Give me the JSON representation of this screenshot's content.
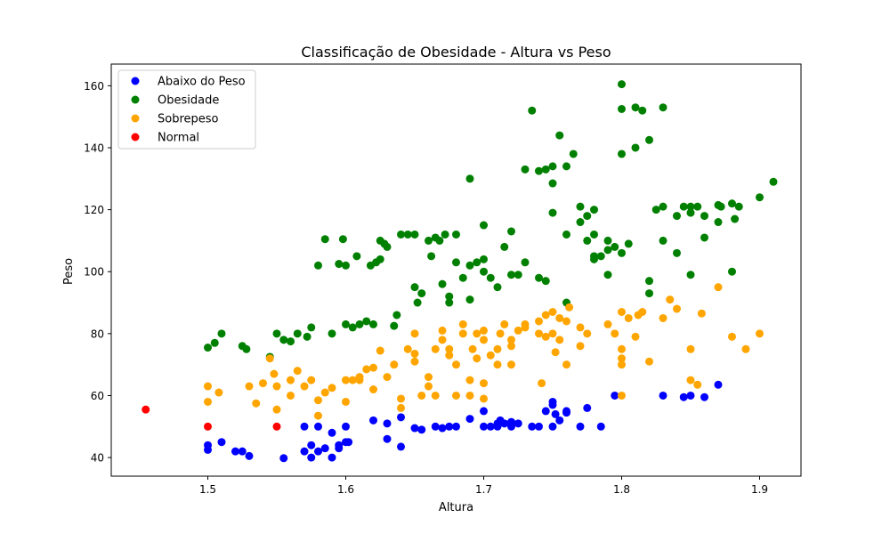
{
  "chart_data": {
    "type": "scatter",
    "title": "Classificação de Obesidade - Altura vs Peso",
    "xlabel": "Altura",
    "ylabel": "Peso",
    "xlim": [
      1.43,
      1.93
    ],
    "ylim": [
      34,
      167
    ],
    "x_ticks": [
      1.5,
      1.6,
      1.7,
      1.8,
      1.9
    ],
    "x_tick_labels": [
      "1.5",
      "1.6",
      "1.7",
      "1.8",
      "1.9"
    ],
    "y_ticks": [
      40,
      60,
      80,
      100,
      120,
      140,
      160
    ],
    "y_tick_labels": [
      "40",
      "60",
      "80",
      "100",
      "120",
      "140",
      "160"
    ],
    "grid": false,
    "legend_position": "top-left",
    "series": [
      {
        "name": "Abaixo do Peso",
        "color": "#0000ff",
        "points": [
          [
            1.5,
            44
          ],
          [
            1.5,
            42.5
          ],
          [
            1.51,
            45
          ],
          [
            1.52,
            42
          ],
          [
            1.525,
            42
          ],
          [
            1.53,
            40.5
          ],
          [
            1.555,
            39.8
          ],
          [
            1.57,
            42
          ],
          [
            1.57,
            50
          ],
          [
            1.575,
            44
          ],
          [
            1.575,
            40
          ],
          [
            1.58,
            42
          ],
          [
            1.58,
            50
          ],
          [
            1.585,
            43
          ],
          [
            1.59,
            48
          ],
          [
            1.59,
            40
          ],
          [
            1.595,
            44
          ],
          [
            1.595,
            43
          ],
          [
            1.6,
            45
          ],
          [
            1.6,
            50
          ],
          [
            1.602,
            45
          ],
          [
            1.62,
            52
          ],
          [
            1.63,
            51
          ],
          [
            1.63,
            46
          ],
          [
            1.64,
            53
          ],
          [
            1.64,
            43.5
          ],
          [
            1.65,
            49.5
          ],
          [
            1.655,
            49
          ],
          [
            1.665,
            50
          ],
          [
            1.67,
            49.5
          ],
          [
            1.675,
            50
          ],
          [
            1.68,
            50
          ],
          [
            1.69,
            52.5
          ],
          [
            1.7,
            55
          ],
          [
            1.7,
            50
          ],
          [
            1.705,
            50
          ],
          [
            1.71,
            51
          ],
          [
            1.71,
            50
          ],
          [
            1.712,
            52
          ],
          [
            1.715,
            51
          ],
          [
            1.72,
            50
          ],
          [
            1.72,
            51.5
          ],
          [
            1.725,
            51
          ],
          [
            1.735,
            50
          ],
          [
            1.74,
            50
          ],
          [
            1.745,
            55
          ],
          [
            1.75,
            50
          ],
          [
            1.75,
            57
          ],
          [
            1.75,
            58
          ],
          [
            1.752,
            54
          ],
          [
            1.755,
            52
          ],
          [
            1.76,
            54.5
          ],
          [
            1.76,
            55
          ],
          [
            1.77,
            50
          ],
          [
            1.775,
            56
          ],
          [
            1.785,
            50
          ],
          [
            1.795,
            60
          ],
          [
            1.83,
            60
          ],
          [
            1.845,
            59.5
          ],
          [
            1.85,
            60
          ],
          [
            1.86,
            59.5
          ],
          [
            1.87,
            63.5
          ]
        ]
      },
      {
        "name": "Obesidade",
        "color": "#008000",
        "points": [
          [
            1.5,
            75.5
          ],
          [
            1.505,
            77
          ],
          [
            1.51,
            80
          ],
          [
            1.525,
            76
          ],
          [
            1.528,
            75
          ],
          [
            1.545,
            72.5
          ],
          [
            1.55,
            80
          ],
          [
            1.555,
            78
          ],
          [
            1.56,
            77.5
          ],
          [
            1.565,
            80
          ],
          [
            1.572,
            79
          ],
          [
            1.575,
            82
          ],
          [
            1.58,
            102
          ],
          [
            1.585,
            110.5
          ],
          [
            1.59,
            80
          ],
          [
            1.595,
            102.5
          ],
          [
            1.598,
            110.5
          ],
          [
            1.6,
            102
          ],
          [
            1.6,
            83
          ],
          [
            1.605,
            82
          ],
          [
            1.608,
            105
          ],
          [
            1.61,
            83
          ],
          [
            1.615,
            84
          ],
          [
            1.618,
            102
          ],
          [
            1.62,
            83
          ],
          [
            1.622,
            103
          ],
          [
            1.625,
            104
          ],
          [
            1.625,
            110
          ],
          [
            1.628,
            109
          ],
          [
            1.63,
            108
          ],
          [
            1.635,
            82.5
          ],
          [
            1.637,
            86
          ],
          [
            1.64,
            112
          ],
          [
            1.645,
            112
          ],
          [
            1.65,
            112
          ],
          [
            1.65,
            95
          ],
          [
            1.652,
            90
          ],
          [
            1.655,
            93
          ],
          [
            1.66,
            110
          ],
          [
            1.662,
            105
          ],
          [
            1.665,
            111
          ],
          [
            1.668,
            110
          ],
          [
            1.67,
            96
          ],
          [
            1.672,
            112
          ],
          [
            1.675,
            92
          ],
          [
            1.675,
            90
          ],
          [
            1.68,
            112
          ],
          [
            1.685,
            98
          ],
          [
            1.69,
            91
          ],
          [
            1.69,
            102
          ],
          [
            1.695,
            103
          ],
          [
            1.7,
            104
          ],
          [
            1.7,
            100
          ],
          [
            1.705,
            98
          ],
          [
            1.71,
            95
          ],
          [
            1.715,
            108
          ],
          [
            1.72,
            113
          ],
          [
            1.725,
            99
          ],
          [
            1.73,
            133
          ],
          [
            1.735,
            152
          ],
          [
            1.74,
            132.5
          ],
          [
            1.745,
            133
          ],
          [
            1.75,
            134
          ],
          [
            1.75,
            128.5
          ],
          [
            1.755,
            144
          ],
          [
            1.76,
            134
          ],
          [
            1.765,
            138
          ],
          [
            1.77,
            121
          ],
          [
            1.775,
            118
          ],
          [
            1.78,
            120
          ],
          [
            1.78,
            112
          ],
          [
            1.785,
            105
          ],
          [
            1.79,
            110
          ],
          [
            1.795,
            108
          ],
          [
            1.8,
            138
          ],
          [
            1.8,
            152.5
          ],
          [
            1.805,
            109
          ],
          [
            1.81,
            153
          ],
          [
            1.815,
            152
          ],
          [
            1.82,
            142.5
          ],
          [
            1.825,
            120
          ],
          [
            1.83,
            121
          ],
          [
            1.83,
            153
          ],
          [
            1.84,
            106
          ],
          [
            1.845,
            121
          ],
          [
            1.85,
            119
          ],
          [
            1.85,
            99
          ],
          [
            1.855,
            121
          ],
          [
            1.86,
            111
          ],
          [
            1.87,
            116
          ],
          [
            1.872,
            121
          ],
          [
            1.88,
            100
          ],
          [
            1.882,
            117
          ],
          [
            1.885,
            121
          ],
          [
            1.9,
            124
          ],
          [
            1.91,
            129
          ],
          [
            1.76,
            112
          ],
          [
            1.77,
            116
          ],
          [
            1.775,
            110
          ],
          [
            1.78,
            104
          ],
          [
            1.79,
            99
          ],
          [
            1.8,
            160.5
          ],
          [
            1.81,
            140
          ],
          [
            1.74,
            98
          ],
          [
            1.745,
            97
          ],
          [
            1.76,
            90
          ],
          [
            1.68,
            103
          ],
          [
            1.69,
            130
          ],
          [
            1.7,
            115
          ],
          [
            1.72,
            99
          ],
          [
            1.73,
            103
          ],
          [
            1.75,
            119
          ],
          [
            1.78,
            105
          ],
          [
            1.79,
            107
          ],
          [
            1.8,
            106
          ],
          [
            1.82,
            97
          ],
          [
            1.82,
            93
          ],
          [
            1.83,
            110
          ],
          [
            1.84,
            118
          ],
          [
            1.85,
            121
          ],
          [
            1.86,
            118
          ],
          [
            1.88,
            122
          ],
          [
            1.87,
            121.5
          ]
        ]
      },
      {
        "name": "Sobrepeso",
        "color": "#ffa500",
        "points": [
          [
            1.5,
            63
          ],
          [
            1.5,
            58
          ],
          [
            1.508,
            61
          ],
          [
            1.53,
            63
          ],
          [
            1.535,
            57.5
          ],
          [
            1.54,
            64
          ],
          [
            1.545,
            72
          ],
          [
            1.548,
            67
          ],
          [
            1.55,
            63
          ],
          [
            1.55,
            55.5
          ],
          [
            1.56,
            60
          ],
          [
            1.565,
            68
          ],
          [
            1.57,
            63
          ],
          [
            1.575,
            65
          ],
          [
            1.58,
            58.5
          ],
          [
            1.58,
            53.5
          ],
          [
            1.59,
            62.5
          ],
          [
            1.6,
            58
          ],
          [
            1.6,
            65
          ],
          [
            1.605,
            65
          ],
          [
            1.61,
            66
          ],
          [
            1.615,
            68.5
          ],
          [
            1.62,
            69
          ],
          [
            1.625,
            74.5
          ],
          [
            1.63,
            66
          ],
          [
            1.635,
            70
          ],
          [
            1.64,
            59
          ],
          [
            1.64,
            56
          ],
          [
            1.645,
            75
          ],
          [
            1.65,
            80
          ],
          [
            1.65,
            73.5
          ],
          [
            1.65,
            71
          ],
          [
            1.655,
            60
          ],
          [
            1.66,
            66
          ],
          [
            1.665,
            60
          ],
          [
            1.665,
            75
          ],
          [
            1.67,
            81
          ],
          [
            1.67,
            78
          ],
          [
            1.675,
            75
          ],
          [
            1.675,
            73
          ],
          [
            1.68,
            60
          ],
          [
            1.68,
            70
          ],
          [
            1.685,
            80
          ],
          [
            1.685,
            83
          ],
          [
            1.69,
            60
          ],
          [
            1.69,
            65
          ],
          [
            1.692,
            75
          ],
          [
            1.695,
            72
          ],
          [
            1.7,
            81
          ],
          [
            1.7,
            78
          ],
          [
            1.7,
            64
          ],
          [
            1.705,
            73
          ],
          [
            1.71,
            75
          ],
          [
            1.712,
            80
          ],
          [
            1.715,
            83
          ],
          [
            1.72,
            70
          ],
          [
            1.72,
            76
          ],
          [
            1.725,
            81
          ],
          [
            1.73,
            83
          ],
          [
            1.74,
            84
          ],
          [
            1.742,
            64
          ],
          [
            1.745,
            79
          ],
          [
            1.75,
            87
          ],
          [
            1.75,
            80
          ],
          [
            1.752,
            74
          ],
          [
            1.755,
            85
          ],
          [
            1.76,
            70
          ],
          [
            1.762,
            88.5
          ],
          [
            1.77,
            76
          ],
          [
            1.775,
            80
          ],
          [
            1.79,
            83
          ],
          [
            1.795,
            80
          ],
          [
            1.8,
            87
          ],
          [
            1.8,
            75
          ],
          [
            1.8,
            72
          ],
          [
            1.8,
            70
          ],
          [
            1.8,
            60
          ],
          [
            1.805,
            85
          ],
          [
            1.81,
            79
          ],
          [
            1.812,
            86
          ],
          [
            1.815,
            87
          ],
          [
            1.82,
            71
          ],
          [
            1.83,
            85
          ],
          [
            1.835,
            91
          ],
          [
            1.84,
            88
          ],
          [
            1.85,
            75
          ],
          [
            1.85,
            65
          ],
          [
            1.855,
            63.5
          ],
          [
            1.858,
            86.5
          ],
          [
            1.87,
            95
          ],
          [
            1.88,
            79
          ],
          [
            1.89,
            75
          ],
          [
            1.9,
            80
          ],
          [
            1.695,
            80
          ],
          [
            1.71,
            70
          ],
          [
            1.66,
            63
          ],
          [
            1.745,
            86
          ],
          [
            1.755,
            78
          ],
          [
            1.62,
            62
          ],
          [
            1.61,
            65
          ],
          [
            1.56,
            65
          ],
          [
            1.585,
            61
          ],
          [
            1.7,
            59
          ],
          [
            1.72,
            78
          ],
          [
            1.73,
            82
          ],
          [
            1.74,
            80
          ],
          [
            1.76,
            84
          ],
          [
            1.77,
            82
          ]
        ]
      },
      {
        "name": "Normal",
        "color": "#ff0000",
        "points": [
          [
            1.455,
            55.5
          ],
          [
            1.5,
            50
          ],
          [
            1.55,
            50
          ]
        ]
      }
    ]
  }
}
